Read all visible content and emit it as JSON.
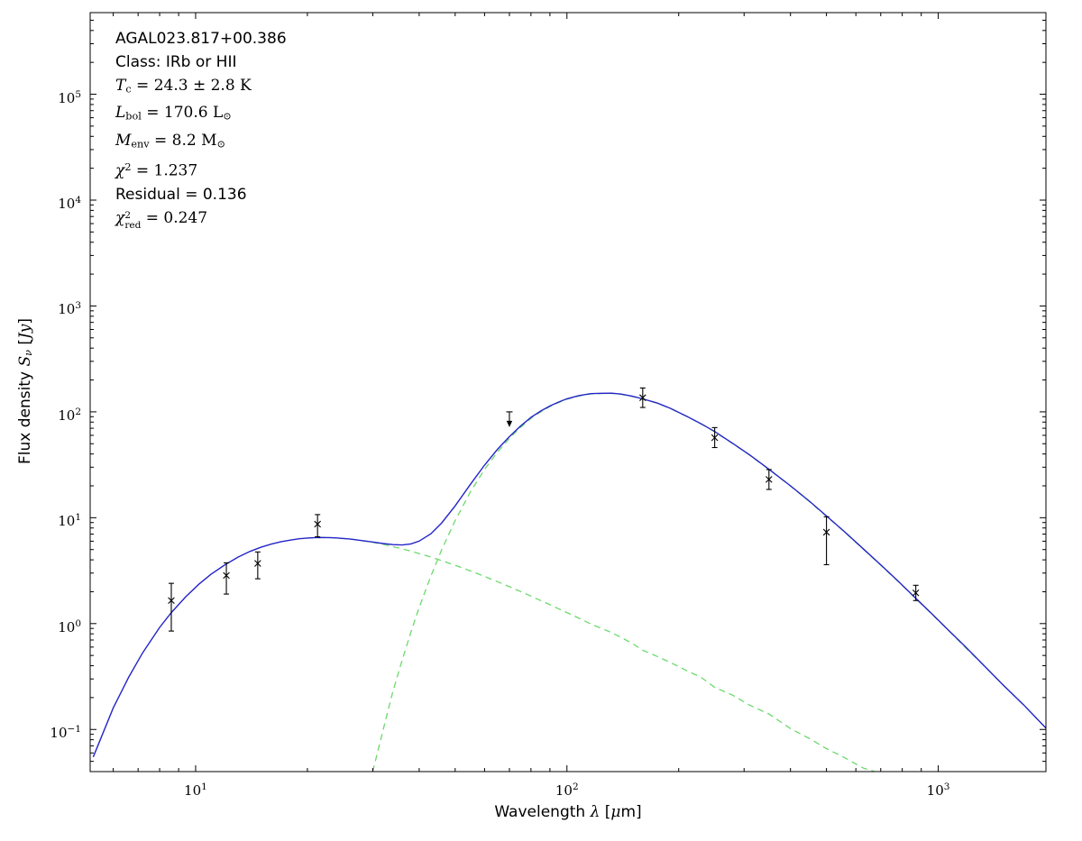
{
  "figure": {
    "background": "#ffffff",
    "annotation_lines": [
      {
        "style": "sans",
        "segments": [
          {
            "t": "AGAL023.817+00.386"
          }
        ]
      },
      {
        "style": "sans",
        "segments": [
          {
            "t": "Class: IRb or HII"
          }
        ]
      },
      {
        "style": "serif",
        "segments": [
          {
            "i": "T"
          },
          {
            "sb": "c"
          },
          {
            "t": " = 24.3 ± 2.8 K"
          }
        ]
      },
      {
        "style": "serif",
        "segments": [
          {
            "i": "L"
          },
          {
            "sb": "bol"
          },
          {
            "t": " = 170.6 L"
          },
          {
            "sb": "⊙"
          }
        ]
      },
      {
        "style": "serif",
        "segments": [
          {
            "i": "M"
          },
          {
            "sb": "env"
          },
          {
            "t": " = 8.2 M"
          },
          {
            "sb": "⊙"
          }
        ]
      },
      {
        "style": "serif",
        "segments": [
          {
            "i": "χ"
          },
          {
            "sp": "2"
          },
          {
            "t": " = 1.237"
          }
        ]
      },
      {
        "style": "sans",
        "segments": [
          {
            "t": "Residual = 0.136"
          }
        ]
      },
      {
        "style": "serif",
        "segments": [
          {
            "i": "χ"
          },
          {
            "st": {
              "sp": "2",
              "sb": "red"
            }
          },
          {
            "t": " = 0.247"
          }
        ]
      }
    ]
  },
  "chart_data": {
    "type": "line",
    "x_scale": "log",
    "y_scale": "log",
    "xlim": [
      5.2,
      1950
    ],
    "ylim": [
      0.04,
      590000
    ],
    "xlabel_segments": [
      {
        "t": "Wavelength "
      },
      {
        "i": "λ"
      },
      {
        "t": " ["
      },
      {
        "i": "μ"
      },
      {
        "t": "m]"
      }
    ],
    "ylabel_segments": [
      {
        "t": "Flux density "
      },
      {
        "i": "S"
      },
      {
        "sbi": "ν"
      },
      {
        "t": " ["
      },
      {
        "i": "Jy"
      },
      {
        "t": "]"
      }
    ],
    "x_ticks": {
      "majors": [
        {
          "v": 10,
          "base": "10",
          "exp": "1"
        },
        {
          "v": 100,
          "base": "10",
          "exp": "2"
        },
        {
          "v": 1000,
          "base": "10",
          "exp": "3"
        }
      ]
    },
    "y_ticks": {
      "majors": [
        {
          "v": 0.1,
          "base": "10",
          "exp": "−1"
        },
        {
          "v": 1,
          "base": "10",
          "exp": "0"
        },
        {
          "v": 10,
          "base": "10",
          "exp": "1"
        },
        {
          "v": 100,
          "base": "10",
          "exp": "2"
        },
        {
          "v": 1000,
          "base": "10",
          "exp": "3"
        },
        {
          "v": 10000,
          "base": "10",
          "exp": "4"
        },
        {
          "v": 100000,
          "base": "10",
          "exp": "5"
        }
      ]
    },
    "series": [
      {
        "name": "cold-component",
        "color": "#6cd96c",
        "style": "dashed",
        "width": 1.3,
        "points": [
          [
            30,
            0.04
          ],
          [
            32,
            0.1
          ],
          [
            34,
            0.23
          ],
          [
            36,
            0.45
          ],
          [
            38,
            0.83
          ],
          [
            40,
            1.42
          ],
          [
            43,
            2.8
          ],
          [
            46,
            5.0
          ],
          [
            50,
            9.4
          ],
          [
            55,
            17.6
          ],
          [
            60,
            28.6
          ],
          [
            65,
            41.7
          ],
          [
            70,
            56.1
          ],
          [
            75,
            71.3
          ],
          [
            80,
            86.7
          ],
          [
            85,
            100
          ],
          [
            90,
            112
          ],
          [
            95,
            122.5
          ],
          [
            100,
            131.7
          ],
          [
            108,
            141.6
          ],
          [
            116,
            147.7
          ],
          [
            124,
            149
          ],
          [
            132,
            149.2
          ],
          [
            140,
            146.4
          ],
          [
            150,
            139.6
          ],
          [
            160,
            132
          ],
          [
            175,
            120.7
          ],
          [
            190,
            107.5
          ],
          [
            210,
            90.7
          ],
          [
            230,
            76.8
          ],
          [
            250,
            64.9
          ],
          [
            280,
            50
          ],
          [
            310,
            39.2
          ],
          [
            350,
            28.6
          ],
          [
            400,
            19.9
          ],
          [
            450,
            14.2
          ],
          [
            500,
            10.3
          ],
          [
            560,
            7.3
          ],
          [
            630,
            5.0
          ],
          [
            700,
            3.56
          ],
          [
            780,
            2.5
          ],
          [
            870,
            1.72
          ],
          [
            960,
            1.23
          ],
          [
            1060,
            0.88
          ],
          [
            1180,
            0.6
          ],
          [
            1320,
            0.41
          ],
          [
            1500,
            0.26
          ],
          [
            1700,
            0.17
          ],
          [
            1950,
            0.103
          ]
        ]
      },
      {
        "name": "warm-component",
        "color": "#6cd96c",
        "style": "dashed",
        "width": 1.3,
        "points": [
          [
            20,
            6.43
          ],
          [
            22,
            6.5
          ],
          [
            24,
            6.44
          ],
          [
            26,
            6.3
          ],
          [
            28,
            6.09
          ],
          [
            30,
            5.86
          ],
          [
            32,
            5.6
          ],
          [
            34,
            5.34
          ],
          [
            36,
            5.08
          ],
          [
            38,
            4.83
          ],
          [
            40,
            4.59
          ],
          [
            43,
            4.25
          ],
          [
            46,
            3.93
          ],
          [
            50,
            3.55
          ],
          [
            55,
            3.14
          ],
          [
            60,
            2.79
          ],
          [
            65,
            2.49
          ],
          [
            70,
            2.23
          ],
          [
            75,
            2.01
          ],
          [
            80,
            1.82
          ],
          [
            85,
            1.65
          ],
          [
            90,
            1.51
          ],
          [
            95,
            1.38
          ],
          [
            100,
            1.27
          ],
          [
            108,
            1.12
          ],
          [
            116,
            0.99
          ],
          [
            124,
            0.9
          ],
          [
            132,
            0.82
          ],
          [
            140,
            0.74
          ],
          [
            150,
            0.65
          ],
          [
            160,
            0.56
          ],
          [
            175,
            0.49
          ],
          [
            190,
            0.43
          ],
          [
            210,
            0.36
          ],
          [
            230,
            0.31
          ],
          [
            250,
            0.25
          ],
          [
            280,
            0.21
          ],
          [
            310,
            0.17
          ],
          [
            350,
            0.14
          ],
          [
            400,
            0.102
          ],
          [
            450,
            0.082
          ],
          [
            500,
            0.066
          ],
          [
            560,
            0.054
          ],
          [
            630,
            0.043
          ],
          [
            690,
            0.039
          ]
        ]
      },
      {
        "name": "total-model",
        "color": "#2424c8",
        "style": "solid",
        "width": 1.4,
        "points": [
          [
            5.3,
            0.055
          ],
          [
            6,
            0.16
          ],
          [
            6.6,
            0.31
          ],
          [
            7.2,
            0.53
          ],
          [
            8,
            0.92
          ],
          [
            8.6,
            1.27
          ],
          [
            9.4,
            1.79
          ],
          [
            10.2,
            2.35
          ],
          [
            11,
            2.92
          ],
          [
            12,
            3.6
          ],
          [
            13,
            4.24
          ],
          [
            14,
            4.8
          ],
          [
            15,
            5.26
          ],
          [
            16,
            5.64
          ],
          [
            17,
            5.94
          ],
          [
            18,
            6.15
          ],
          [
            19,
            6.33
          ],
          [
            20,
            6.43
          ],
          [
            21,
            6.49
          ],
          [
            22,
            6.5
          ],
          [
            23,
            6.49
          ],
          [
            24,
            6.44
          ],
          [
            25,
            6.37
          ],
          [
            26,
            6.3
          ],
          [
            28,
            6.09
          ],
          [
            30,
            5.9
          ],
          [
            32,
            5.7
          ],
          [
            34,
            5.57
          ],
          [
            36,
            5.53
          ],
          [
            38,
            5.66
          ],
          [
            40,
            6.01
          ],
          [
            43,
            7.05
          ],
          [
            46,
            8.93
          ],
          [
            50,
            12.95
          ],
          [
            55,
            20.7
          ],
          [
            60,
            31.4
          ],
          [
            65,
            44.2
          ],
          [
            70,
            58.3
          ],
          [
            75,
            73.3
          ],
          [
            80,
            88.5
          ],
          [
            85,
            101.7
          ],
          [
            90,
            113.5
          ],
          [
            95,
            123.9
          ],
          [
            100,
            133
          ],
          [
            108,
            142.7
          ],
          [
            116,
            148.7
          ],
          [
            124,
            149.9
          ],
          [
            132,
            150
          ],
          [
            140,
            147.1
          ],
          [
            150,
            140.3
          ],
          [
            160,
            132.6
          ],
          [
            175,
            121.2
          ],
          [
            190,
            107.9
          ],
          [
            210,
            91.1
          ],
          [
            230,
            77.1
          ],
          [
            250,
            65.2
          ],
          [
            280,
            50.2
          ],
          [
            310,
            39.4
          ],
          [
            350,
            28.7
          ],
          [
            400,
            20
          ],
          [
            450,
            14.3
          ],
          [
            500,
            10.4
          ],
          [
            560,
            7.35
          ],
          [
            630,
            5.04
          ],
          [
            700,
            3.59
          ],
          [
            780,
            2.52
          ],
          [
            870,
            1.73
          ],
          [
            960,
            1.24
          ],
          [
            1060,
            0.88
          ],
          [
            1180,
            0.61
          ],
          [
            1320,
            0.41
          ],
          [
            1500,
            0.26
          ],
          [
            1700,
            0.17
          ],
          [
            1950,
            0.103
          ]
        ]
      }
    ],
    "data_points": {
      "color": "#000000",
      "marker": "x",
      "points": [
        {
          "x": 8.6,
          "y": 1.65,
          "ylo": 0.85,
          "yhi": 2.4
        },
        {
          "x": 12.1,
          "y": 2.85,
          "ylo": 1.9,
          "yhi": 3.75
        },
        {
          "x": 14.7,
          "y": 3.7,
          "ylo": 2.65,
          "yhi": 4.75
        },
        {
          "x": 21.3,
          "y": 8.7,
          "ylo": 6.6,
          "yhi": 10.7
        },
        {
          "x": 160,
          "y": 136,
          "ylo": 110,
          "yhi": 168
        },
        {
          "x": 250,
          "y": 57,
          "ylo": 46,
          "yhi": 71
        },
        {
          "x": 350,
          "y": 23,
          "ylo": 18.5,
          "yhi": 28.5
        },
        {
          "x": 500,
          "y": 7.3,
          "ylo": 3.6,
          "yhi": 10.2
        },
        {
          "x": 870,
          "y": 1.95,
          "ylo": 1.65,
          "yhi": 2.3
        }
      ]
    },
    "upper_limits": [
      {
        "x": 70,
        "y": 100
      }
    ]
  }
}
